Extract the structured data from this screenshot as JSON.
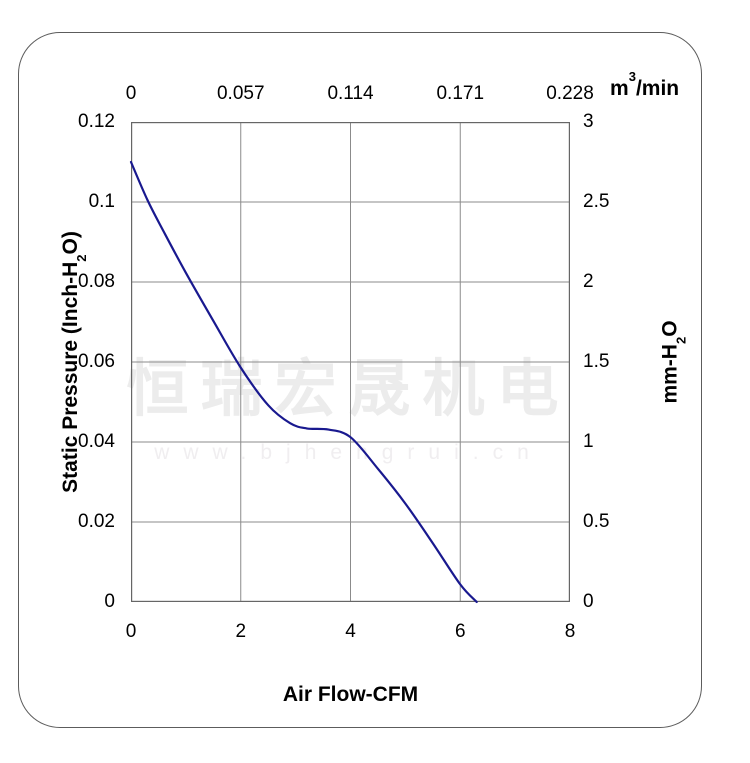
{
  "page": {
    "background": "#ffffff",
    "border_color": "#5c5c5c"
  },
  "watermark": {
    "line1": "恒瑞宏晟机电",
    "line2": "www.bjhengrui.cn",
    "color_primary": "#ececec",
    "color_secondary": "#f0eef0"
  },
  "labels": {
    "top_unit_base": "m",
    "top_unit_sup": "3",
    "top_unit_rest": "/min",
    "left_title_base": "Static Pressure (Inch-H",
    "left_title_sub": "2",
    "left_title_rest": "O)",
    "right_title_base": "mm-H",
    "right_title_sub": "2",
    "right_title_rest": "O",
    "bottom_title": "Air Flow-CFM"
  },
  "chart_data": {
    "type": "line",
    "x_axis_bottom": {
      "label": "Air Flow-CFM",
      "ticks": [
        "0",
        "2",
        "4",
        "6",
        "8"
      ],
      "range": [
        0,
        8
      ]
    },
    "x_axis_top": {
      "label": "m3/min",
      "ticks": [
        "0",
        "0.057",
        "0.114",
        "0.171",
        "0.228"
      ],
      "range": [
        0,
        0.228
      ]
    },
    "y_axis_left": {
      "label": "Static Pressure (Inch-H2O)",
      "ticks": [
        "0.12",
        "0.1",
        "0.08",
        "0.06",
        "0.04",
        "0.02",
        "0"
      ],
      "range": [
        0,
        0.12
      ]
    },
    "y_axis_right": {
      "label": "mm-H2O",
      "ticks": [
        "3",
        "2.5",
        "2",
        "1.5",
        "1",
        "0.5",
        "0"
      ],
      "range": [
        0,
        3
      ]
    },
    "grid": true,
    "legend": "none",
    "colors": {
      "curve": "#19198f",
      "gridline": "#8b8b8b",
      "plot_frame": "#666666"
    },
    "series": [
      {
        "name": "static-pressure-vs-airflow",
        "points_cfm_inh2o": [
          [
            0,
            0.11
          ],
          [
            0.3,
            0.1005
          ],
          [
            0.6,
            0.0925
          ],
          [
            1.0,
            0.0823
          ],
          [
            1.5,
            0.0703
          ],
          [
            2.0,
            0.0586
          ],
          [
            2.5,
            0.0492
          ],
          [
            2.9,
            0.0447
          ],
          [
            3.2,
            0.0434
          ],
          [
            3.6,
            0.0431
          ],
          [
            4.0,
            0.0412
          ],
          [
            4.5,
            0.0333
          ],
          [
            5.0,
            0.0246
          ],
          [
            5.5,
            0.0147
          ],
          [
            6.0,
            0.0044
          ],
          [
            6.3,
            0
          ]
        ]
      }
    ]
  }
}
